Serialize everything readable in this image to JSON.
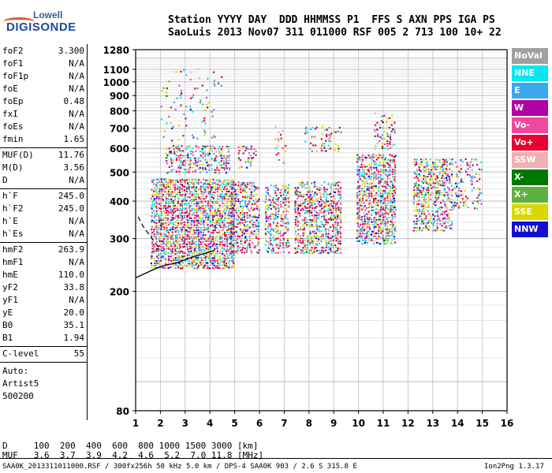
{
  "logo": {
    "line1": "Lowell",
    "line2": "DIGISONDE"
  },
  "header": {
    "line1": "Station YYYY DAY  DDD HHMMSS P1  FFS S AXN PPS IGA PS",
    "line2": "SaoLuis 2013 Nov07 311 011000 RSF 005 2 713 100 10+ 22"
  },
  "params": {
    "group1": [
      {
        "k": "foF2",
        "v": "3.300"
      },
      {
        "k": "foF1",
        "v": "N/A"
      },
      {
        "k": "foF1p",
        "v": "N/A"
      },
      {
        "k": "foE",
        "v": "N/A"
      },
      {
        "k": "foEp",
        "v": "0.48"
      },
      {
        "k": "fxI",
        "v": "N/A"
      },
      {
        "k": "foEs",
        "v": "N/A"
      },
      {
        "k": "fmin",
        "v": "1.65"
      }
    ],
    "group2": [
      {
        "k": "MUF(D)",
        "v": "11.76"
      },
      {
        "k": "M(D)",
        "v": "3.56"
      },
      {
        "k": "D",
        "v": "N/A"
      }
    ],
    "group3": [
      {
        "k": "h`F",
        "v": "245.0"
      },
      {
        "k": "h`F2",
        "v": "245.0"
      },
      {
        "k": "h`E",
        "v": "N/A"
      },
      {
        "k": "h`Es",
        "v": "N/A"
      }
    ],
    "group4": [
      {
        "k": "hmF2",
        "v": "263.9"
      },
      {
        "k": "hmF1",
        "v": "N/A"
      },
      {
        "k": "hmE",
        "v": "110.0"
      },
      {
        "k": "yF2",
        "v": "33.8"
      },
      {
        "k": "yF1",
        "v": "N/A"
      },
      {
        "k": "yE",
        "v": "20.0"
      },
      {
        "k": "B0",
        "v": "35.1"
      },
      {
        "k": "B1",
        "v": "1.94"
      }
    ],
    "group5": [
      {
        "k": "C-level",
        "v": "55"
      }
    ],
    "auto": [
      "Auto:",
      "Artist5",
      "500200"
    ]
  },
  "legend": [
    {
      "label": "NoVal",
      "color": "#a0a0a0"
    },
    {
      "label": "NNE",
      "color": "#00e8f0"
    },
    {
      "label": "E",
      "color": "#3aa8f0"
    },
    {
      "label": "W",
      "color": "#b000a8"
    },
    {
      "label": "Vo-",
      "color": "#f048a0"
    },
    {
      "label": "Vo+",
      "color": "#e80030"
    },
    {
      "label": "SSW",
      "color": "#f0b0b0"
    },
    {
      "label": "X-",
      "color": "#007800"
    },
    {
      "label": "X+",
      "color": "#60b040"
    },
    {
      "label": "SSE",
      "color": "#d8d800"
    },
    {
      "label": "NNW",
      "color": "#1010d0"
    }
  ],
  "footer": {
    "d_row": "D     100  200  400  600  800 1000 1500 3000 [km]",
    "muf_row": "MUF   3.6  3.7  3.9  4.2  4.6  5.2  7.0 11.8 [MHz]",
    "file": "SAA0K_2013311011000.RSF / 300fx256h 50 kHz 5.0 km / DPS-4 SAA0K 903 / 2.6 S 315.8 E",
    "version": "Ion2Png 1.3.17"
  },
  "chart_data": {
    "type": "scatter",
    "xlabel": "",
    "ylabel": "",
    "xlim": [
      1,
      16
    ],
    "ylim": [
      80,
      1280
    ],
    "yscale": "log",
    "xticks": [
      "1",
      "2",
      "3",
      "4",
      "5",
      "6",
      "7",
      "8",
      "9",
      "10",
      "11",
      "12",
      "13",
      "14",
      "15",
      "16"
    ],
    "yticks": [
      80,
      200,
      300,
      400,
      500,
      600,
      700,
      800,
      900,
      1000,
      1100,
      1280
    ],
    "ytick_labels": [
      "80",
      "200",
      "300",
      "400",
      "500",
      "600",
      "700",
      "800",
      "900",
      "1000",
      "1100",
      "1280"
    ],
    "grid": true,
    "echo_clusters": [
      {
        "x": [
          1.6,
          5.0
        ],
        "y": [
          240,
          480
        ],
        "density": 0.9
      },
      {
        "x": [
          2.2,
          4.8
        ],
        "y": [
          500,
          620
        ],
        "density": 0.6
      },
      {
        "x": [
          2.0,
          4.5
        ],
        "y": [
          640,
          1120
        ],
        "density": 0.12
      },
      {
        "x": [
          4.8,
          6.0
        ],
        "y": [
          270,
          470
        ],
        "density": 0.7
      },
      {
        "x": [
          5.0,
          5.9
        ],
        "y": [
          520,
          620
        ],
        "density": 0.35
      },
      {
        "x": [
          6.2,
          7.2
        ],
        "y": [
          270,
          460
        ],
        "density": 0.7
      },
      {
        "x": [
          6.6,
          7.1
        ],
        "y": [
          540,
          720
        ],
        "density": 0.3
      },
      {
        "x": [
          7.4,
          9.3
        ],
        "y": [
          270,
          470
        ],
        "density": 0.75
      },
      {
        "x": [
          7.8,
          9.3
        ],
        "y": [
          590,
          720
        ],
        "density": 0.3
      },
      {
        "x": [
          9.9,
          11.5
        ],
        "y": [
          290,
          580
        ],
        "density": 0.8
      },
      {
        "x": [
          10.6,
          11.5
        ],
        "y": [
          600,
          800
        ],
        "density": 0.35
      },
      {
        "x": [
          12.2,
          13.8
        ],
        "y": [
          320,
          560
        ],
        "density": 0.7
      },
      {
        "x": [
          13.8,
          15.0
        ],
        "y": [
          380,
          560
        ],
        "density": 0.3
      }
    ],
    "trace_solid": {
      "x": [
        1.0,
        1.4,
        1.8,
        2.2,
        2.6,
        3.0,
        3.4,
        3.8,
        4.2
      ],
      "y": [
        222,
        230,
        238,
        245,
        248,
        255,
        262,
        268,
        274
      ]
    },
    "trace_dashed": {
      "x": [
        1.1,
        1.3,
        1.6,
        1.8,
        2.0
      ],
      "y": [
        355,
        330,
        305,
        290,
        275
      ]
    }
  }
}
